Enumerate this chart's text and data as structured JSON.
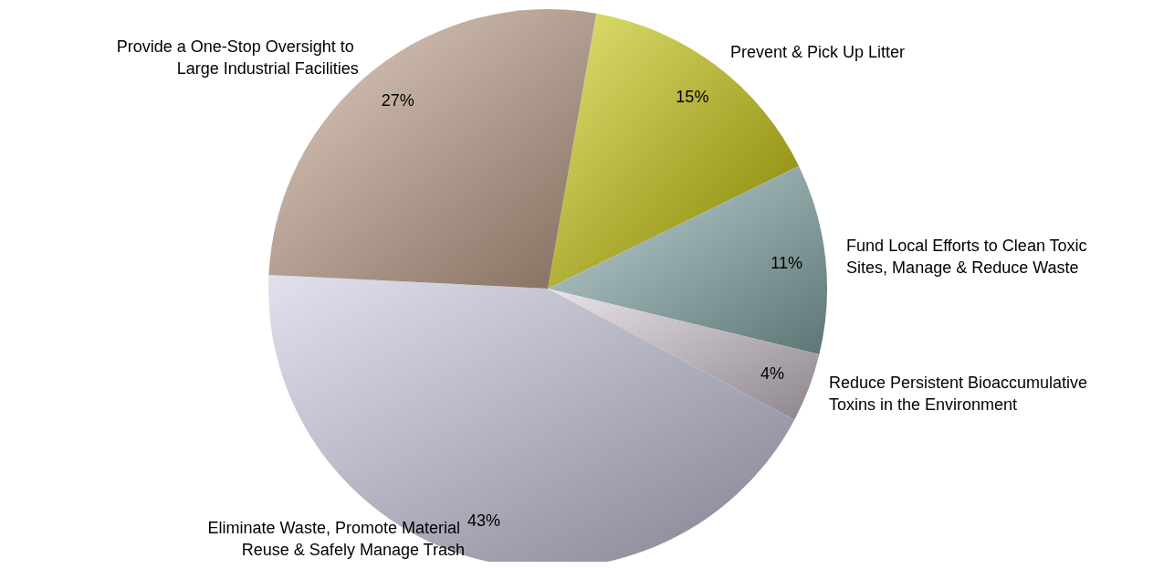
{
  "chart_data": {
    "type": "pie",
    "categories": [
      "Prevent & Pick Up Litter",
      "Fund Local Efforts to Clean Toxic Sites, Manage & Reduce Waste",
      "Reduce Persistent Bioaccumulative Toxins in the Environment",
      "Eliminate Waste, Promote Material Reuse & Safely Manage Trash",
      "Provide a One-Stop Oversight to Large Industrial Facilities"
    ],
    "values": [
      15,
      11,
      4,
      43,
      27
    ],
    "value_labels": [
      "15%",
      "11%",
      "4%",
      "43%",
      "27%"
    ],
    "colors": [
      "#c8c800",
      "#8fb4b4",
      "#d8ccd8",
      "#c8c8e0",
      "#c8a890"
    ],
    "legend": false
  }
}
